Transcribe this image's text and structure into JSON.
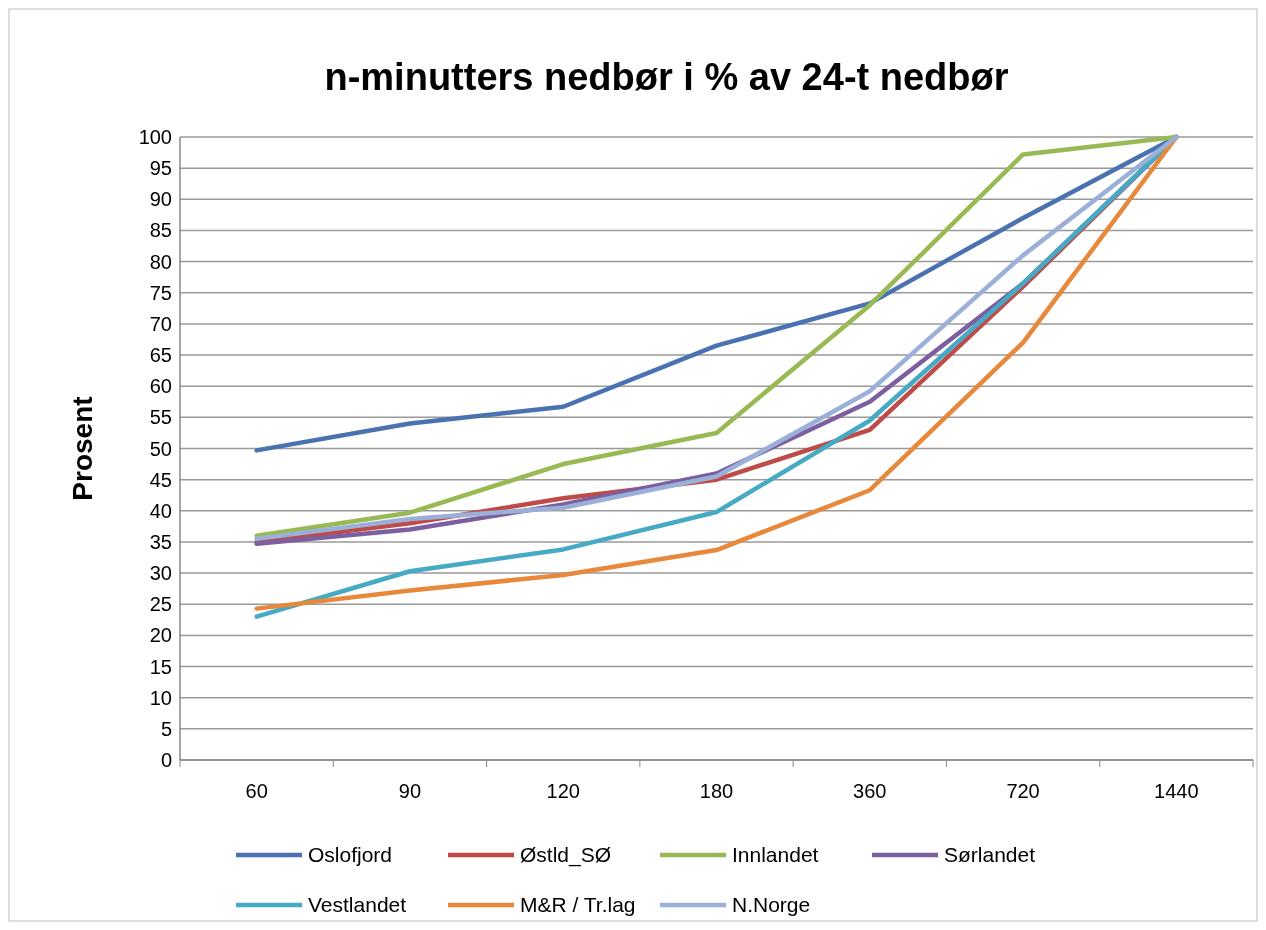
{
  "chart_data": {
    "type": "line",
    "title": "n-minutters nedbør i % av 24-t nedbør",
    "ylabel": "Prosent",
    "categories": [
      "60",
      "90",
      "120",
      "180",
      "360",
      "720",
      "1440"
    ],
    "ylim": [
      0,
      100
    ],
    "yticks": [
      0,
      5,
      10,
      15,
      20,
      25,
      30,
      35,
      40,
      45,
      50,
      55,
      60,
      65,
      70,
      75,
      80,
      85,
      90,
      95,
      100
    ],
    "grid": "y",
    "legend": "bottom",
    "marker": "none",
    "line_style": "solid",
    "series": [
      {
        "name": "Oslofjord",
        "color": "#4a72b0",
        "values": [
          49.7,
          54,
          56.7,
          66.5,
          73.3,
          87,
          100
        ]
      },
      {
        "name": "Østld_SØ",
        "color": "#be4b48",
        "values": [
          35,
          38,
          42,
          45,
          53,
          76,
          100
        ]
      },
      {
        "name": "Innlandet",
        "color": "#98b954",
        "values": [
          36,
          39.7,
          47.5,
          52.5,
          73,
          97.2,
          100
        ]
      },
      {
        "name": "Sørlandet",
        "color": "#7d5fa0",
        "values": [
          34.7,
          37,
          41,
          46,
          57.5,
          76.5,
          100
        ]
      },
      {
        "name": "Vestlandet",
        "color": "#46aac5",
        "values": [
          23,
          30.3,
          33.8,
          39.8,
          54.5,
          76.5,
          100
        ]
      },
      {
        "name": "M&R / Tr.lag",
        "color": "#e8883a",
        "values": [
          24.3,
          27.2,
          29.7,
          33.7,
          43.3,
          67,
          100
        ]
      },
      {
        "name": "N.Norge",
        "color": "#9bb0d8",
        "values": [
          35.5,
          38.7,
          40.5,
          45.5,
          59.2,
          81,
          100
        ]
      }
    ]
  }
}
